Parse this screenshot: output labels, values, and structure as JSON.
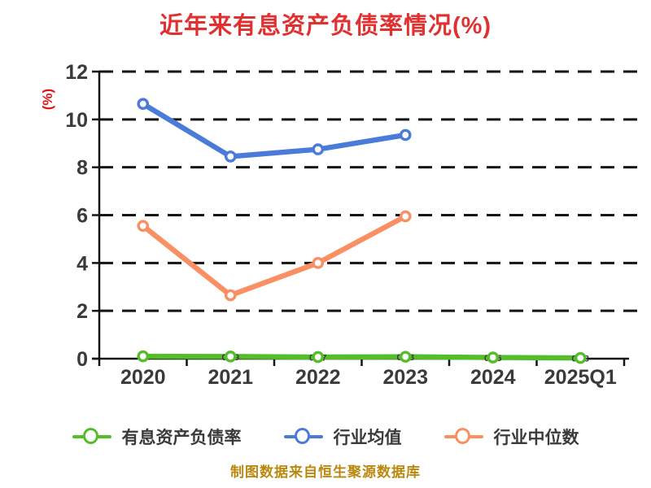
{
  "title": "近年来有息资产负债率情况(%)",
  "footer": "制图数据来自恒生聚源数据库",
  "colors": {
    "background": "#ffffff",
    "title": "#e03030",
    "y_label": "#e01515",
    "tick_text": "#3a3a3c",
    "axis": "#141414",
    "grid": "#141414",
    "footer": "#bb880f",
    "marker_fill": "#ffffff",
    "series_green": "#55bd2a",
    "series_blue": "#4b7bd8",
    "series_orange": "#f98f63"
  },
  "chart_data": {
    "type": "line",
    "title": "近年来有息资产负债率情况(%)",
    "ylabel": "(%)",
    "xlabel": "",
    "ylim": [
      0,
      12
    ],
    "yticks": [
      0,
      2,
      4,
      6,
      8,
      10,
      12
    ],
    "grid": true,
    "grid_style": "dashed",
    "legend_position": "bottom",
    "categories": [
      "2020",
      "2021",
      "2022",
      "2023",
      "2024",
      "2025Q1"
    ],
    "series": [
      {
        "name": "有息资产负债率",
        "color": "#55bd2a",
        "values": [
          0.1,
          0.09,
          0.07,
          0.08,
          0.05,
          0.03
        ],
        "point_labels": [
          "0.1",
          "0.09",
          "0.07",
          "0.08",
          "0.05",
          "0.03"
        ]
      },
      {
        "name": "行业均值",
        "color": "#4b7bd8",
        "values": [
          10.65,
          8.45,
          8.75,
          9.35,
          null,
          null
        ],
        "point_labels": []
      },
      {
        "name": "行业中位数",
        "color": "#f98f63",
        "values": [
          5.55,
          2.65,
          4.0,
          5.95,
          null,
          null
        ],
        "point_labels": []
      }
    ]
  }
}
